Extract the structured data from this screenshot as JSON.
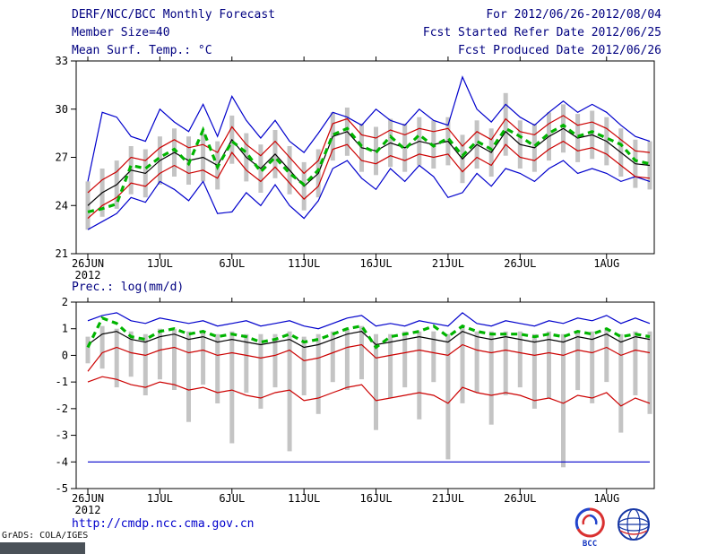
{
  "header": {
    "title": "DERF/NCC/BCC Monthly Forecast",
    "member_size": "Member Size=40",
    "for_range": "For 2012/06/26-2012/08/04",
    "fcst_started": "Fcst Started Refer Date 2012/06/25",
    "fcst_produced": "Fcst Produced Date 2012/06/26"
  },
  "footer": {
    "url": "http://cmdp.ncc.cma.gov.cn",
    "credit": "GrADS: COLA/IGES",
    "bcc_label": "BCC"
  },
  "colors": {
    "envelope": "#0000cc",
    "spread": "#cc0000",
    "mean": "#000000",
    "highlight": "#00b400",
    "bars": "#c4c4c4",
    "header_text": "#000080",
    "link": "#0000cc"
  },
  "chart_data": [
    {
      "type": "line",
      "title": "Mean Surf. Temp.: °C",
      "ylim": [
        21,
        33
      ],
      "yticks": [
        21,
        24,
        27,
        30,
        33
      ],
      "n_days": 40,
      "xtick_labels": [
        "26JUN",
        "1JUL",
        "6JUL",
        "11JUL",
        "16JUL",
        "21JUL",
        "26JUL",
        "1AUG"
      ],
      "xtick_days": [
        0,
        5,
        10,
        15,
        20,
        25,
        30,
        36
      ],
      "year_label": "2012",
      "series": [
        {
          "name": "ensemble-max",
          "color": "#0000cc",
          "width": 1.2,
          "values": [
            25.5,
            29.8,
            29.5,
            28.3,
            28.0,
            30.0,
            29.2,
            28.6,
            30.3,
            28.3,
            30.8,
            29.3,
            28.2,
            29.3,
            28.0,
            27.3,
            28.5,
            29.8,
            29.5,
            29.0,
            30.0,
            29.3,
            29.0,
            30.0,
            29.3,
            29.0,
            32.0,
            30.0,
            29.2,
            30.3,
            29.5,
            29.0,
            29.8,
            30.5,
            29.8,
            30.3,
            29.8,
            29.0,
            28.3,
            28.0
          ]
        },
        {
          "name": "ensemble-min",
          "color": "#0000cc",
          "width": 1.2,
          "values": [
            22.5,
            23.0,
            23.5,
            24.5,
            24.2,
            25.5,
            25.0,
            24.3,
            25.5,
            23.5,
            23.6,
            24.8,
            24.0,
            25.3,
            24.0,
            23.2,
            24.3,
            26.3,
            26.8,
            25.7,
            25.0,
            26.3,
            25.5,
            26.5,
            25.8,
            24.5,
            24.8,
            26.0,
            25.2,
            26.3,
            26.0,
            25.5,
            26.3,
            26.8,
            26.0,
            26.3,
            26.0,
            25.5,
            25.8,
            25.5
          ]
        },
        {
          "name": "mean-plus-spread",
          "color": "#cc0000",
          "width": 1.2,
          "values": [
            24.8,
            25.6,
            26.1,
            27.0,
            26.8,
            27.6,
            28.1,
            27.6,
            27.8,
            27.3,
            28.9,
            27.8,
            27.1,
            28.0,
            27.0,
            26.0,
            26.8,
            29.1,
            29.4,
            28.4,
            28.2,
            28.7,
            28.4,
            28.8,
            28.6,
            28.8,
            27.7,
            28.6,
            28.1,
            29.4,
            28.6,
            28.4,
            29.1,
            29.6,
            29.0,
            29.2,
            28.8,
            28.1,
            27.4,
            27.3
          ]
        },
        {
          "name": "mean-minus-spread",
          "color": "#cc0000",
          "width": 1.2,
          "values": [
            23.2,
            24.0,
            24.5,
            25.4,
            25.2,
            26.0,
            26.5,
            26.0,
            26.2,
            25.7,
            27.3,
            26.2,
            25.5,
            26.4,
            25.4,
            24.4,
            25.2,
            27.5,
            27.8,
            26.8,
            26.6,
            27.1,
            26.8,
            27.2,
            27.0,
            27.2,
            26.1,
            27.0,
            26.5,
            27.8,
            27.0,
            26.8,
            27.5,
            28.0,
            27.4,
            27.6,
            27.2,
            26.5,
            25.8,
            25.7
          ]
        },
        {
          "name": "ensemble-mean",
          "color": "#000000",
          "width": 1.2,
          "values": [
            24.0,
            24.8,
            25.3,
            26.2,
            26.0,
            26.8,
            27.3,
            26.8,
            27.0,
            26.5,
            28.1,
            27.0,
            26.3,
            27.2,
            26.2,
            25.2,
            26.0,
            28.3,
            28.6,
            27.6,
            27.4,
            27.9,
            27.6,
            28.0,
            27.8,
            28.0,
            26.9,
            27.8,
            27.3,
            28.6,
            27.8,
            27.6,
            28.3,
            28.8,
            28.2,
            28.4,
            28.0,
            27.3,
            26.6,
            26.5
          ]
        },
        {
          "name": "highlight-forecast",
          "color": "#00b400",
          "width": 3.2,
          "dashed": true,
          "values": [
            23.6,
            23.8,
            24.1,
            26.5,
            26.3,
            27.0,
            27.5,
            26.6,
            28.7,
            26.4,
            28.0,
            27.3,
            26.1,
            27.0,
            26.0,
            25.3,
            26.2,
            28.4,
            28.8,
            27.7,
            27.3,
            28.3,
            27.5,
            28.4,
            27.7,
            28.2,
            27.1,
            28.0,
            27.5,
            28.8,
            28.3,
            27.7,
            28.5,
            29.0,
            28.3,
            28.6,
            28.2,
            27.8,
            26.8,
            26.6
          ]
        }
      ],
      "bars": {
        "color": "#c4c4c4",
        "high": [
          25.5,
          26.3,
          26.8,
          27.7,
          27.5,
          28.3,
          28.8,
          28.3,
          28.5,
          28.0,
          29.6,
          28.5,
          27.8,
          28.7,
          27.7,
          26.7,
          27.5,
          29.8,
          30.1,
          29.1,
          28.9,
          29.4,
          29.1,
          29.5,
          29.3,
          29.5,
          28.4,
          29.3,
          28.8,
          31.0,
          29.3,
          29.1,
          29.8,
          30.3,
          29.7,
          29.9,
          29.5,
          28.8,
          28.1,
          28.0
        ],
        "low": [
          22.5,
          23.3,
          23.8,
          24.7,
          24.5,
          25.3,
          25.8,
          25.3,
          25.5,
          25.0,
          26.6,
          25.5,
          24.8,
          25.7,
          24.7,
          23.7,
          24.5,
          26.8,
          27.1,
          26.1,
          25.9,
          26.4,
          26.1,
          26.5,
          26.3,
          26.5,
          25.4,
          26.3,
          25.8,
          27.1,
          26.3,
          26.1,
          26.8,
          27.3,
          26.7,
          26.9,
          26.5,
          25.8,
          25.1,
          25.0
        ]
      }
    },
    {
      "type": "line",
      "title": "Prec.: log(mm/d)",
      "ylim": [
        -5,
        2
      ],
      "yticks": [
        -5,
        -4,
        -3,
        -2,
        -1,
        0,
        1,
        2
      ],
      "n_days": 40,
      "xtick_labels": [
        "26JUN",
        "1JUL",
        "6JUL",
        "11JUL",
        "16JUL",
        "21JUL",
        "26JUL",
        "1AUG"
      ],
      "xtick_days": [
        0,
        5,
        10,
        15,
        20,
        25,
        30,
        36
      ],
      "year_label": "2012",
      "series": [
        {
          "name": "ensemble-max",
          "color": "#0000cc",
          "width": 1.2,
          "values": [
            1.3,
            1.5,
            1.6,
            1.3,
            1.2,
            1.4,
            1.3,
            1.2,
            1.3,
            1.1,
            1.2,
            1.3,
            1.1,
            1.2,
            1.3,
            1.1,
            1.0,
            1.2,
            1.4,
            1.5,
            1.1,
            1.2,
            1.1,
            1.3,
            1.2,
            1.1,
            1.6,
            1.2,
            1.1,
            1.3,
            1.2,
            1.1,
            1.3,
            1.2,
            1.4,
            1.3,
            1.5,
            1.2,
            1.4,
            1.2
          ]
        },
        {
          "name": "ensemble-min",
          "color": "#0000cc",
          "width": 1.2,
          "values": [
            -4.0,
            -4.0,
            -4.0,
            -4.0,
            -4.0,
            -4.0,
            -4.0,
            -4.0,
            -4.0,
            -4.0,
            -4.0,
            -4.0,
            -4.0,
            -4.0,
            -4.0,
            -4.0,
            -4.0,
            -4.0,
            -4.0,
            -4.0,
            -4.0,
            -4.0,
            -4.0,
            -4.0,
            -4.0,
            -4.0,
            -4.0,
            -4.0,
            -4.0,
            -4.0,
            -4.0,
            -4.0,
            -4.0,
            -4.0,
            -4.0,
            -4.0,
            -4.0,
            -4.0,
            -4.0,
            -4.0
          ]
        },
        {
          "name": "mean-plus-spread",
          "color": "#cc0000",
          "width": 1.2,
          "values": [
            -0.6,
            0.1,
            0.3,
            0.1,
            0.0,
            0.2,
            0.3,
            0.1,
            0.2,
            0.0,
            0.1,
            0.0,
            -0.1,
            0.0,
            0.2,
            -0.2,
            -0.1,
            0.1,
            0.3,
            0.4,
            -0.1,
            0.0,
            0.1,
            0.2,
            0.1,
            0.0,
            0.4,
            0.2,
            0.1,
            0.2,
            0.1,
            0.0,
            0.1,
            0.0,
            0.2,
            0.1,
            0.3,
            0.0,
            0.2,
            0.1
          ]
        },
        {
          "name": "mean-minus-spread",
          "color": "#cc0000",
          "width": 1.2,
          "values": [
            -1.0,
            -0.8,
            -0.9,
            -1.1,
            -1.2,
            -1.0,
            -1.1,
            -1.3,
            -1.2,
            -1.4,
            -1.3,
            -1.5,
            -1.6,
            -1.4,
            -1.3,
            -1.7,
            -1.6,
            -1.4,
            -1.2,
            -1.1,
            -1.7,
            -1.6,
            -1.5,
            -1.4,
            -1.5,
            -1.8,
            -1.2,
            -1.4,
            -1.5,
            -1.4,
            -1.5,
            -1.7,
            -1.6,
            -1.8,
            -1.5,
            -1.6,
            -1.4,
            -1.9,
            -1.6,
            -1.8
          ]
        },
        {
          "name": "ensemble-mean",
          "color": "#000000",
          "width": 1.2,
          "values": [
            0.4,
            0.8,
            0.9,
            0.6,
            0.5,
            0.7,
            0.8,
            0.6,
            0.7,
            0.5,
            0.6,
            0.5,
            0.4,
            0.5,
            0.6,
            0.3,
            0.4,
            0.6,
            0.8,
            0.9,
            0.4,
            0.5,
            0.6,
            0.7,
            0.6,
            0.5,
            0.9,
            0.7,
            0.6,
            0.7,
            0.6,
            0.5,
            0.6,
            0.5,
            0.7,
            0.6,
            0.8,
            0.5,
            0.7,
            0.6
          ]
        },
        {
          "name": "highlight-forecast",
          "color": "#00b400",
          "width": 3.2,
          "dashed": true,
          "values": [
            0.3,
            1.4,
            1.2,
            0.7,
            0.6,
            0.9,
            1.0,
            0.8,
            0.9,
            0.7,
            0.8,
            0.7,
            0.5,
            0.6,
            0.8,
            0.5,
            0.6,
            0.8,
            1.0,
            1.1,
            0.3,
            0.7,
            0.8,
            0.9,
            1.1,
            0.7,
            1.1,
            0.9,
            0.8,
            0.8,
            0.8,
            0.7,
            0.8,
            0.7,
            0.9,
            0.8,
            1.0,
            0.7,
            0.8,
            0.7
          ]
        }
      ],
      "bars": {
        "color": "#c4c4c4",
        "high": [
          0.7,
          1.1,
          1.0,
          0.9,
          0.8,
          1.0,
          1.0,
          0.9,
          0.9,
          0.8,
          0.9,
          0.8,
          0.8,
          0.8,
          0.9,
          0.7,
          0.8,
          0.9,
          1.0,
          1.1,
          0.8,
          0.8,
          0.9,
          0.9,
          0.9,
          0.8,
          1.1,
          0.9,
          0.9,
          0.9,
          0.9,
          0.8,
          0.9,
          0.8,
          0.9,
          0.9,
          1.0,
          0.8,
          0.9,
          0.9
        ],
        "low": [
          -0.3,
          -0.5,
          -1.2,
          -0.8,
          -1.5,
          -0.9,
          -1.3,
          -2.5,
          -1.1,
          -1.8,
          -3.3,
          -1.4,
          -2.0,
          -1.2,
          -3.6,
          -1.5,
          -2.2,
          -1.0,
          -1.3,
          -0.9,
          -2.8,
          -1.6,
          -1.2,
          -2.4,
          -1.0,
          -3.9,
          -1.8,
          -1.4,
          -2.6,
          -1.5,
          -1.2,
          -2.0,
          -1.6,
          -4.2,
          -1.3,
          -1.8,
          -1.0,
          -2.9,
          -1.5,
          -2.2
        ]
      }
    }
  ]
}
